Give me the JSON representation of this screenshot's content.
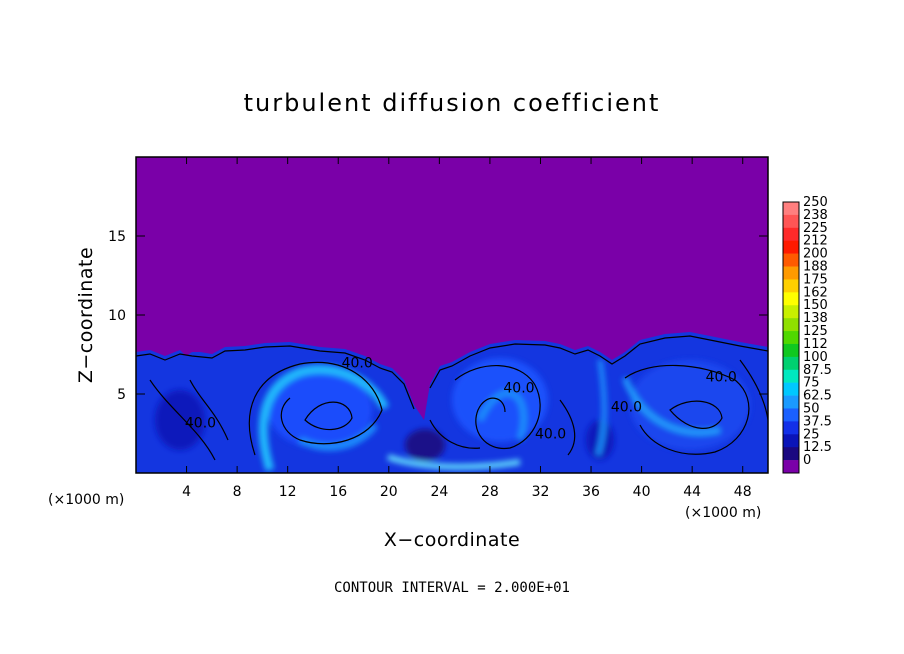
{
  "chart_data": {
    "type": "heatmap",
    "title": "turbulent diffusion coefficient",
    "xlabel": "X−coordinate",
    "ylabel": "Z−coordinate",
    "x_unit": "(×1000 m)",
    "y_unit": "(×1000 m)",
    "xlim": [
      0,
      50
    ],
    "ylim": [
      0,
      20
    ],
    "x_ticks": [
      4,
      8,
      12,
      16,
      20,
      24,
      28,
      32,
      36,
      40,
      44,
      48
    ],
    "y_ticks": [
      5,
      10,
      15
    ],
    "colorbar_levels": [
      "250",
      "238",
      "225",
      "212",
      "200",
      "188",
      "175",
      "162",
      "150",
      "138",
      "125",
      "112",
      "100",
      "87.5",
      "75",
      "62.5",
      "50",
      "37.5",
      "25",
      "12.5",
      "0"
    ],
    "colorbar_colors": [
      "#ff7f7f",
      "#ff5555",
      "#ff2a2a",
      "#ff1a00",
      "#ff5a00",
      "#ff9a00",
      "#ffd000",
      "#ffff00",
      "#c8f000",
      "#90e000",
      "#50d800",
      "#10c820",
      "#00d070",
      "#00e8c0",
      "#00c8ff",
      "#1a9aff",
      "#1a60ff",
      "#1230e8",
      "#0a14b8",
      "#1a0880",
      "#7a00a8"
    ],
    "background_value": 0,
    "contour_labels": [
      {
        "text": "40.0",
        "x": 17.5,
        "z": 7.0
      },
      {
        "text": "40.0",
        "x": 5.1,
        "z": 3.2
      },
      {
        "text": "40.0",
        "x": 30.3,
        "z": 5.4
      },
      {
        "text": "40.0",
        "x": 32.8,
        "z": 2.5
      },
      {
        "text": "40.0",
        "x": 38.8,
        "z": 4.2
      },
      {
        "text": "40.0",
        "x": 46.3,
        "z": 6.1
      }
    ],
    "annotation": "CONTOUR INTERVAL = 2.000E+01"
  }
}
